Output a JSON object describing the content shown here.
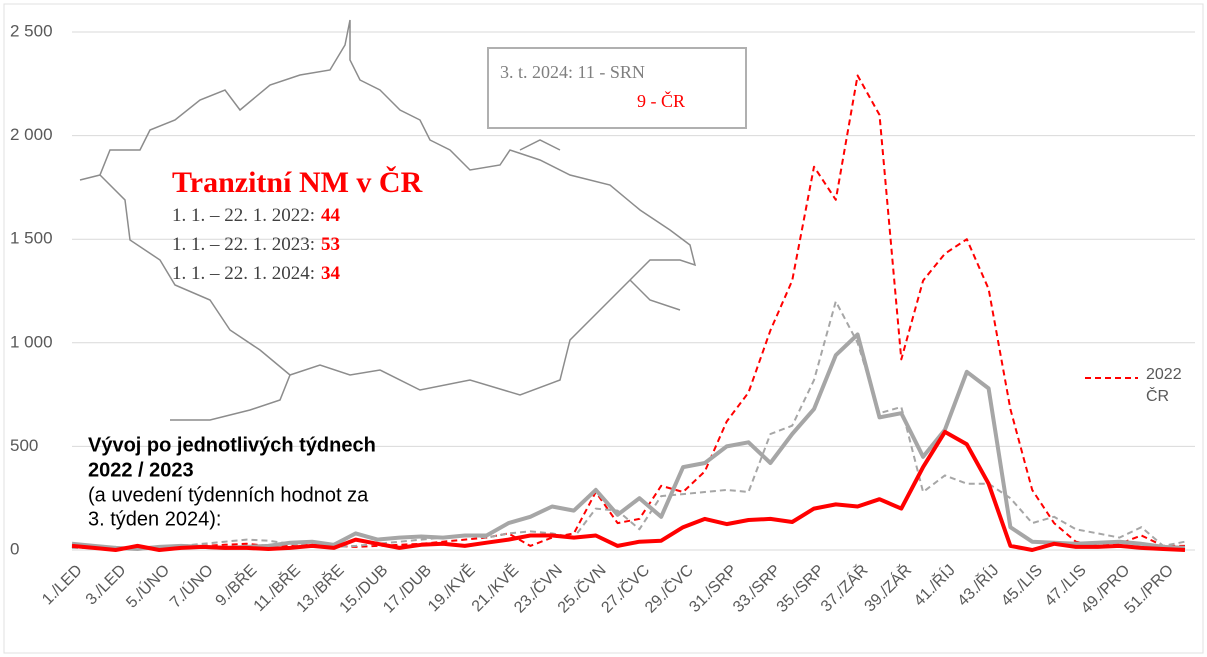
{
  "chart_data": {
    "type": "line",
    "title": "Tranzitní NM v ČR",
    "annotations": {
      "periods": [
        {
          "text": "1. 1. – 22. 1. 2022:",
          "value": "44"
        },
        {
          "text": "1. 1. – 22. 1. 2023:",
          "value": "53"
        },
        {
          "text": "1. 1. – 22. 1. 2024:",
          "value": "34"
        }
      ],
      "box": [
        "3. t. 2024: 11 - SRN",
        "9 - ČR"
      ],
      "subtitle_bold": [
        "Vývoj po jednotlivých týdnech",
        "2022 / 2023"
      ],
      "subtitle": [
        "(a uvedení týdenních hodnot za",
        "3. týden 2024):"
      ]
    },
    "categories": [
      "1./LED",
      null,
      "3./LED",
      null,
      "5./ÚNO",
      null,
      "7./ÚNO",
      null,
      "9./BŘE",
      null,
      "11./BŘE",
      null,
      "13./BŘE",
      null,
      "15./DUB",
      null,
      "17./DUB",
      null,
      "19./KVĚ",
      null,
      "21./KVĚ",
      null,
      "23./ČVN",
      null,
      "25./ČVN",
      null,
      "27./ČVC",
      null,
      "29./ČVC",
      null,
      "31./SRP",
      null,
      "33./SRP",
      null,
      "35./SRP",
      null,
      "37./ZÁŘ",
      null,
      "39./ZÁŘ",
      null,
      "41./ŘÍJ",
      null,
      "43./ŘÍJ",
      null,
      "45./LIS",
      null,
      "47./LIS",
      null,
      "49./PRO",
      null,
      "51./PRO",
      null
    ],
    "series": [
      {
        "name": "2022 ČR",
        "color": "#ff0000",
        "dashed": true,
        "width": 2,
        "values": [
          20,
          15,
          10,
          15,
          5,
          10,
          20,
          25,
          30,
          20,
          20,
          25,
          20,
          15,
          20,
          25,
          30,
          40,
          50,
          60,
          80,
          20,
          60,
          80,
          280,
          130,
          150,
          310,
          280,
          380,
          620,
          760,
          1060,
          1300,
          1850,
          1690,
          2290,
          2100,
          920,
          1300,
          1430,
          1500,
          1260,
          680,
          290,
          130,
          40,
          20,
          30,
          70,
          20,
          20
        ]
      },
      {
        "color": "#a6a6a6",
        "dashed": true,
        "width": 2,
        "values": [
          10,
          10,
          15,
          5,
          10,
          20,
          30,
          40,
          50,
          45,
          30,
          20,
          15,
          20,
          30,
          40,
          50,
          60,
          70,
          60,
          80,
          90,
          80,
          60,
          200,
          190,
          100,
          260,
          270,
          280,
          290,
          280,
          560,
          600,
          820,
          1200,
          1000,
          660,
          690,
          280,
          360,
          320,
          320,
          250,
          130,
          160,
          100,
          80,
          60,
          110,
          20,
          40
        ]
      },
      {
        "color": "#a6a6a6",
        "dashed": false,
        "width": 4,
        "values": [
          30,
          20,
          10,
          5,
          15,
          20,
          15,
          10,
          15,
          20,
          35,
          40,
          25,
          80,
          50,
          60,
          65,
          60,
          70,
          70,
          130,
          160,
          210,
          190,
          290,
          170,
          250,
          160,
          400,
          420,
          500,
          520,
          420,
          560,
          680,
          940,
          1040,
          640,
          660,
          450,
          580,
          860,
          780,
          110,
          40,
          35,
          30,
          35,
          40,
          30,
          15,
          10
        ]
      },
      {
        "color": "#ff0000",
        "dashed": false,
        "width": 4,
        "values": [
          20,
          10,
          0,
          20,
          0,
          10,
          15,
          10,
          10,
          5,
          10,
          20,
          10,
          50,
          30,
          10,
          25,
          30,
          20,
          35,
          50,
          70,
          70,
          60,
          70,
          20,
          40,
          45,
          110,
          150,
          125,
          145,
          150,
          135,
          200,
          220,
          210,
          245,
          200,
          400,
          570,
          510,
          320,
          20,
          0,
          30,
          15,
          15,
          20,
          10,
          5,
          0
        ]
      }
    ],
    "ylim": [
      0,
      2500
    ],
    "yticks": [
      0,
      500,
      {
        "value": 1000,
        "label": "1 000"
      },
      {
        "value": 1500,
        "label": "1 500"
      },
      {
        "value": 2000,
        "label": "2 000"
      },
      {
        "value": 2500,
        "label": "2 500"
      }
    ],
    "grid": true
  }
}
